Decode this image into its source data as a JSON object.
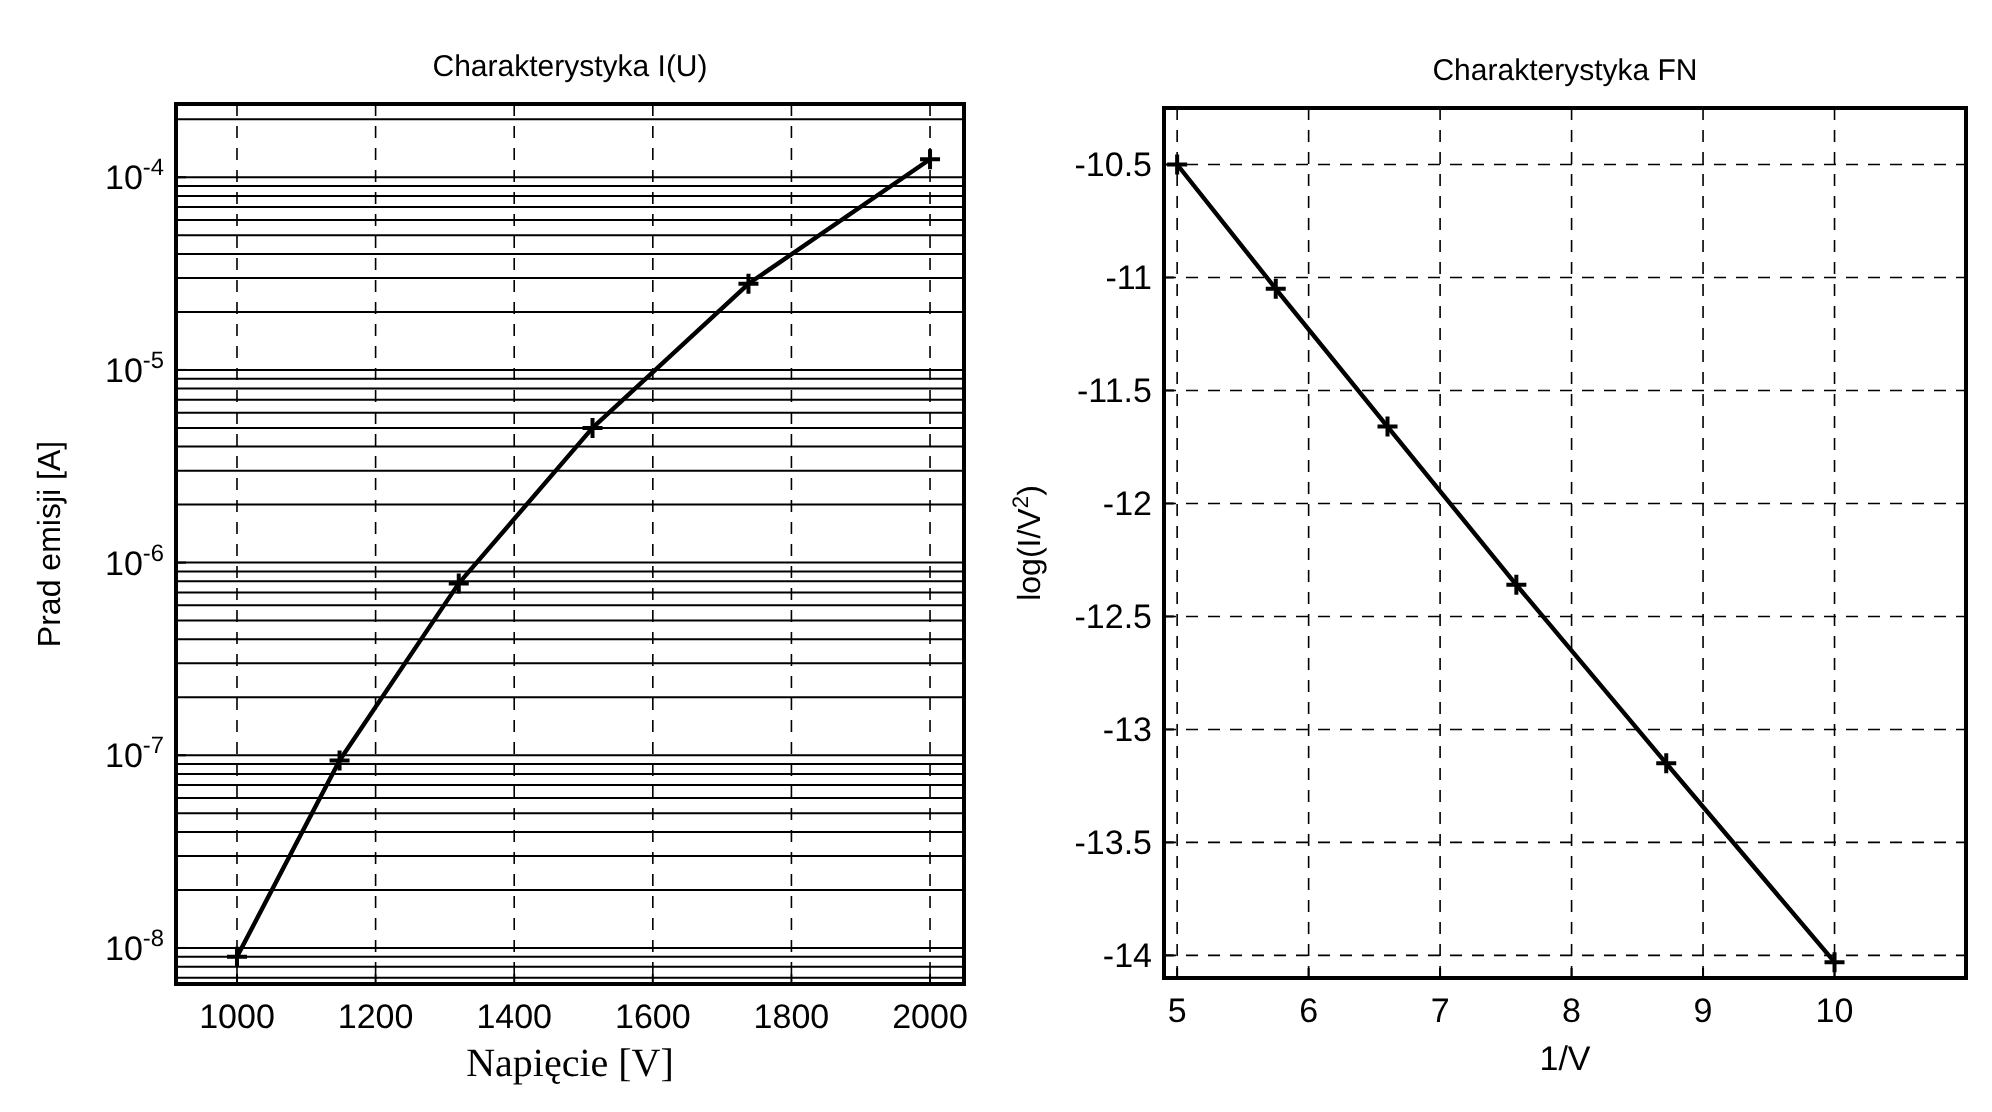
{
  "chart_data": [
    {
      "type": "line",
      "title": "Charakterystyka I(U)",
      "xlabel": "Napięcie [V]",
      "ylabel": "Prad emisji [A]",
      "log": "y",
      "grid": true,
      "marker": "cross",
      "line_style": "solid",
      "x": [
        1000,
        1148,
        1320,
        1513,
        1738,
        2000
      ],
      "series": [
        {
          "color": "#000000",
          "values": [
            9e-09,
            9.4e-08,
            7.8e-07,
            5e-06,
            2.8e-05,
            0.000124
          ]
        }
      ],
      "xlim": [
        912,
        2049
      ],
      "xticks": [
        1000,
        1200,
        1400,
        1600,
        1800,
        2000
      ],
      "ylim": [
        6.5e-09,
        0.00024
      ],
      "yticks": [
        {
          "value": 1e-08,
          "label": "10$^{-8}$"
        },
        {
          "value": 1e-07,
          "label": "10$^{-7}$"
        },
        {
          "value": 1e-06,
          "label": "10$^{-6}$"
        },
        {
          "value": 1e-05,
          "label": "10$^{-5}$"
        },
        {
          "value": 0.0001,
          "label": "10$^{-4}$"
        }
      ]
    },
    {
      "type": "line",
      "title": "Charakterystyka FN",
      "xlabel": "1/V",
      "ylabel": "log(I/V$^{2}$)",
      "grid": true,
      "marker": "cross",
      "line_style": "solid",
      "x": [
        5,
        5.75,
        6.6,
        7.58,
        8.72,
        10
      ],
      "series": [
        {
          "color": "#000000",
          "values": [
            -10.5,
            -11.05,
            -11.66,
            -12.36,
            -13.15,
            -14.03
          ]
        }
      ],
      "xlim": [
        4.9,
        11
      ],
      "xticks": [
        5,
        6,
        7,
        8,
        9,
        10
      ],
      "ylim": [
        -14.1,
        -10.25
      ],
      "yticks": [
        -14,
        -13.5,
        -13,
        -12.5,
        -12,
        -11.5,
        -11,
        -10.5
      ]
    }
  ]
}
